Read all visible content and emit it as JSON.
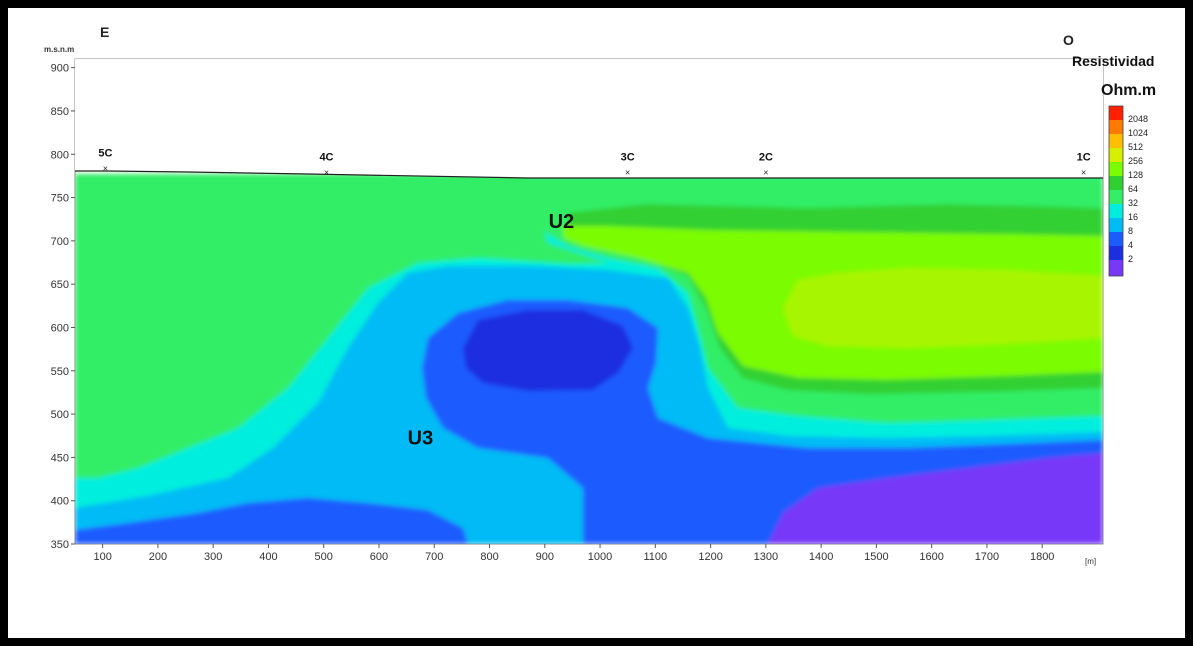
{
  "chart_data": {
    "type": "heatmap",
    "title": "",
    "xlabel": "[m]",
    "ylabel": "m.s.n.m",
    "xlim": [
      50,
      1910
    ],
    "ylim": [
      350,
      910
    ],
    "x_ticks": [
      "100",
      "200",
      "300",
      "400",
      "500",
      "600",
      "700",
      "800",
      "900",
      "1000",
      "1100",
      "1200",
      "1300",
      "1400",
      "1500",
      "1600",
      "1700",
      "1800"
    ],
    "y_ticks": [
      "350",
      "400",
      "450",
      "500",
      "550",
      "600",
      "650",
      "700",
      "750",
      "800",
      "850",
      "900"
    ],
    "orientation": {
      "left": "E",
      "right": "O"
    },
    "colorbar": {
      "title": "Resistividad",
      "unit": "Ohm.m",
      "levels": [
        {
          "label": "2048",
          "color": "#ff2000"
        },
        {
          "label": "1024",
          "color": "#ff7a00"
        },
        {
          "label": "512",
          "color": "#ffbf00"
        },
        {
          "label": "256",
          "color": "#d6ee00"
        },
        {
          "label": "128",
          "color": "#7cfc00"
        },
        {
          "label": "64",
          "color": "#30d030"
        },
        {
          "label": "32",
          "color": "#33ee66"
        },
        {
          "label": "16",
          "color": "#00eedd"
        },
        {
          "label": "8",
          "color": "#00bbf5"
        },
        {
          "label": "4",
          "color": "#1a5cff"
        },
        {
          "label": "2",
          "color": "#1b2fe0"
        },
        {
          "label": "",
          "color": "#7838f8"
        }
      ]
    },
    "stations": [
      {
        "label": "5C",
        "x": 105,
        "elev": 785
      },
      {
        "label": "4C",
        "x": 505,
        "elev": 780
      },
      {
        "label": "3C",
        "x": 1050,
        "elev": 780
      },
      {
        "label": "2C",
        "x": 1300,
        "elev": 780
      },
      {
        "label": "1C",
        "x": 1875,
        "elev": 780
      }
    ],
    "units": [
      {
        "label": "U2",
        "x": 930,
        "elev": 715
      },
      {
        "label": "U3",
        "x": 675,
        "elev": 465
      }
    ],
    "grid": false
  }
}
